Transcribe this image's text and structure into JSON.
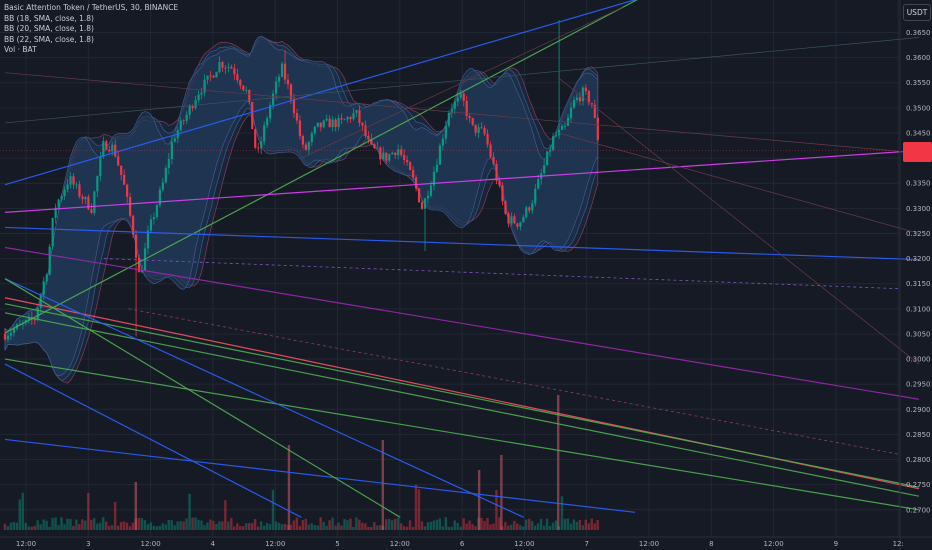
{
  "legend": {
    "symbol_line": "Basic Attention Token / TetherUS, 30, BINANCE",
    "bb1": "BB (18, SMA, close, 1.8)",
    "bb2": "BB (20, SMA, close, 1.8)",
    "bb3": "BB (22, SMA, close, 1.8)",
    "vol": "Vol · BAT"
  },
  "currency_badge": "USDT",
  "colors": {
    "background": "#161a25",
    "grid": "#232735",
    "up": "#089981",
    "down": "#f23645",
    "bb_fill": "#1f3350",
    "bb_edge": "#7a3a55",
    "trend_blue": "#2962ff",
    "trend_green": "#4caf50",
    "trend_purple": "#9c27b0",
    "trend_magenta": "#e040fb",
    "trend_red": "#f7525f",
    "price_tag": "#f23645"
  },
  "chart_data": {
    "type": "candlestick",
    "title": "Basic Attention Token / TetherUS, 30, BINANCE",
    "ylabel": "USDT",
    "ylim": [
      0.2685,
      0.3675
    ],
    "y_ticks": [
      "0.3650",
      "0.3600",
      "0.3550",
      "0.3500",
      "0.3450",
      "0.3400",
      "0.3350",
      "0.3300",
      "0.3250",
      "0.3200",
      "0.3150",
      "0.3100",
      "0.3050",
      "0.3000",
      "0.2950",
      "0.2900",
      "0.2850",
      "0.2800",
      "0.2750",
      "0.2700"
    ],
    "x_ticks": [
      "12:00",
      "3",
      "12:00",
      "4",
      "12:00",
      "5",
      "12:00",
      "6",
      "12:00",
      "7",
      "12:00",
      "8",
      "12:00",
      "9",
      "12:"
    ],
    "current_price_marker": 0.3415,
    "series": [
      {
        "name": "BB (18, SMA, close, 1.8)"
      },
      {
        "name": "BB (20, SMA, close, 1.8)"
      },
      {
        "name": "BB (22, SMA, close, 1.8)"
      },
      {
        "name": "Vol · BAT"
      }
    ],
    "price_path_points": [
      [
        0.0,
        0.305
      ],
      [
        1.2,
        0.308
      ],
      [
        1.7,
        0.318
      ],
      [
        2.0,
        0.33
      ],
      [
        2.6,
        0.336
      ],
      [
        3.0,
        0.333
      ],
      [
        3.5,
        0.33
      ],
      [
        4.0,
        0.343
      ],
      [
        4.4,
        0.342
      ],
      [
        4.8,
        0.335
      ],
      [
        5.2,
        0.325
      ],
      [
        5.45,
        0.316
      ],
      [
        5.8,
        0.325
      ],
      [
        6.4,
        0.335
      ],
      [
        6.8,
        0.344
      ],
      [
        7.3,
        0.348
      ],
      [
        7.8,
        0.353
      ],
      [
        8.3,
        0.356
      ],
      [
        8.7,
        0.359
      ],
      [
        9.2,
        0.358
      ],
      [
        9.8,
        0.353
      ],
      [
        10.2,
        0.34
      ],
      [
        10.7,
        0.35
      ],
      [
        11.2,
        0.358
      ],
      [
        11.6,
        0.352
      ],
      [
        12.1,
        0.341
      ],
      [
        12.6,
        0.346
      ],
      [
        13.1,
        0.347
      ],
      [
        13.6,
        0.347
      ],
      [
        14.2,
        0.349
      ],
      [
        14.8,
        0.342
      ],
      [
        15.4,
        0.34
      ],
      [
        15.9,
        0.342
      ],
      [
        16.5,
        0.336
      ],
      [
        16.9,
        0.33
      ],
      [
        17.4,
        0.338
      ],
      [
        18.0,
        0.35
      ],
      [
        18.5,
        0.352
      ],
      [
        18.9,
        0.346
      ],
      [
        19.4,
        0.345
      ],
      [
        19.8,
        0.338
      ],
      [
        20.3,
        0.328
      ],
      [
        20.8,
        0.327
      ],
      [
        21.3,
        0.331
      ],
      [
        21.8,
        0.338
      ],
      [
        22.2,
        0.344
      ],
      [
        22.7,
        0.346
      ],
      [
        23.0,
        0.351
      ],
      [
        23.4,
        0.353
      ],
      [
        23.75,
        0.351
      ],
      [
        24.0,
        0.344
      ]
    ],
    "trend_lines": [
      {
        "color": "blue",
        "from": [
          0.0,
          0.3347
        ],
        "to": [
          25.7,
          0.3718
        ]
      },
      {
        "color": "green",
        "from": [
          0.0,
          0.3052
        ],
        "to": [
          25.7,
          0.3718
        ]
      },
      {
        "color": "blue",
        "from": [
          0.0,
          0.3262
        ],
        "to": [
          37.0,
          0.3198
        ]
      },
      {
        "color": "magenta",
        "from": [
          0.0,
          0.3292
        ],
        "to": [
          37.0,
          0.3415
        ]
      },
      {
        "color": "purple",
        "from": [
          0.0,
          0.3222
        ],
        "to": [
          37.0,
          0.292
        ]
      },
      {
        "color": "red",
        "from": [
          0.0,
          0.3122
        ],
        "to": [
          37.0,
          0.2742
        ]
      },
      {
        "color": "green",
        "from": [
          0.0,
          0.3092
        ],
        "to": [
          37.0,
          0.2727
        ]
      },
      {
        "color": "green",
        "from": [
          0.0,
          0.3
        ],
        "to": [
          37.0,
          0.27
        ]
      },
      {
        "color": "green",
        "from": [
          0.0,
          0.311
        ],
        "to": [
          37.0,
          0.2745
        ]
      },
      {
        "color": "blue",
        "from": [
          0.0,
          0.316
        ],
        "to": [
          21.0,
          0.2685
        ]
      },
      {
        "color": "blue",
        "from": [
          0.0,
          0.299
        ],
        "to": [
          12.0,
          0.2685
        ]
      },
      {
        "color": "blue",
        "from": [
          0.0,
          0.284
        ],
        "to": [
          25.5,
          0.2695
        ]
      },
      {
        "color": "green",
        "from": [
          0.0,
          0.316
        ],
        "to": [
          16.0,
          0.2685
        ]
      }
    ]
  }
}
